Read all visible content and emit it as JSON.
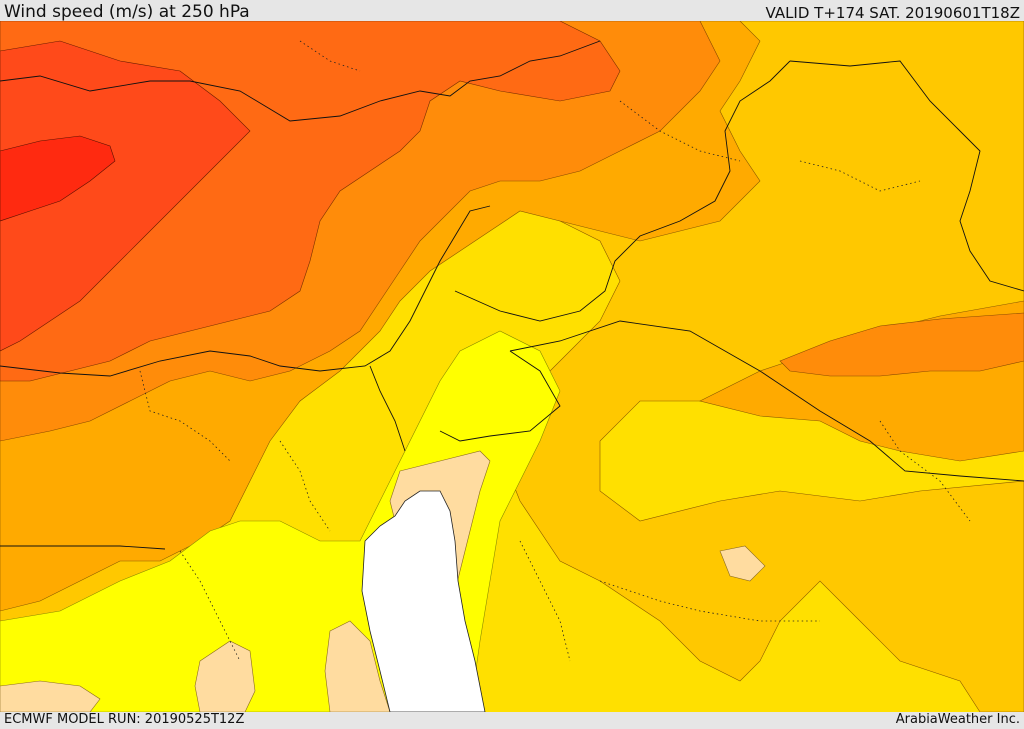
{
  "header": {
    "title": "Wind speed (m/s) at 250 hPa",
    "valid_time": "VALID T+174 SAT. 20190601T18Z"
  },
  "footer": {
    "model_run": "ECMWF MODEL RUN: 20190525T12Z",
    "credit": "ArabiaWeather Inc."
  },
  "map": {
    "variable": "wind speed at 250 hPa",
    "colors": {
      "core": "#ff2a10",
      "very_strong": "#ff4a1a",
      "strong": "#ff6a14",
      "moderate_high": "#ff8c0a",
      "moderate": "#ffaa00",
      "light_moderate": "#ffc800",
      "light": "#ffe000",
      "weak": "#ffff00",
      "very_weak": "#ffdca0",
      "sea_mask": "#ffffff"
    }
  }
}
